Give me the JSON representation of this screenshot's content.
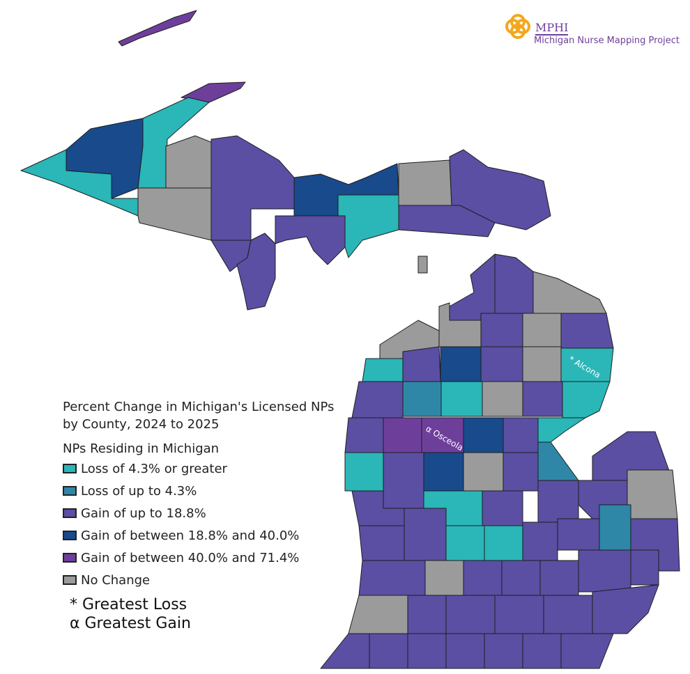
{
  "logo": {
    "title": "MPHI",
    "subtitle": "Michigan Nurse Mapping Project"
  },
  "legend": {
    "title": "Percent Change in Michigan's Licensed NPs by County, 2024 to 2025",
    "subtitle": "NPs Residing in Michigan",
    "items": [
      {
        "label": "Loss of 4.3% or greater",
        "color": "#2bb6b8"
      },
      {
        "label": "Loss of up to 4.3%",
        "color": "#2f87a8"
      },
      {
        "label": "Gain of up to 18.8%",
        "color": "#5a4fa3"
      },
      {
        "label": "Gain of between 18.8% and 40.0%",
        "color": "#184a8c"
      },
      {
        "label": "Gain of between 40.0% and 71.4%",
        "color": "#6d3f9b"
      },
      {
        "label": "No Change",
        "color": "#9b9b9b"
      }
    ]
  },
  "notes": [
    "* Greatest Loss",
    "α Greatest Gain"
  ],
  "county_labels": [
    {
      "text": "* Alcona"
    },
    {
      "text": "α Osceola"
    }
  ]
}
